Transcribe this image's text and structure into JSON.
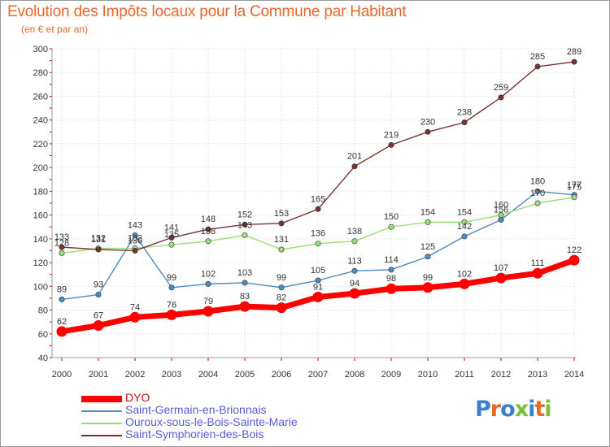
{
  "title": "Evolution des Impôts locaux pour la Commune par Habitant",
  "subtitle": "(en € et par an)",
  "logo": {
    "text": "Proxiti",
    "colors": [
      "#3a7fd0",
      "#e8682a",
      "#3a7fd0",
      "#7bbf3a",
      "#3a7fd0",
      "#e8682a",
      "#7bbf3a"
    ]
  },
  "chart_data": {
    "type": "line",
    "title": "Evolution des Impôts locaux pour la Commune par Habitant",
    "subtitle": "(en € et par an)",
    "xlabel": "",
    "ylabel": "",
    "ylim": [
      40,
      300
    ],
    "yticks": [
      40,
      60,
      80,
      100,
      120,
      140,
      160,
      180,
      200,
      220,
      240,
      260,
      280,
      300
    ],
    "x": [
      "2000",
      "2001",
      "2002",
      "2003",
      "2004",
      "2005",
      "2006",
      "2007",
      "2008",
      "2009",
      "2010",
      "2011",
      "2012",
      "2013",
      "2014"
    ],
    "grid": true,
    "legend_position": "bottom-left",
    "series": [
      {
        "name": "DYO",
        "color": "#ff0000",
        "emphasis": true,
        "values": [
          62,
          67,
          74,
          76,
          79,
          83,
          82,
          91,
          94,
          98,
          99,
          102,
          107,
          111,
          122
        ]
      },
      {
        "name": "Saint-Germain-en-Brionnais",
        "color": "#4d8ac0",
        "emphasis": false,
        "values": [
          89,
          93,
          143,
          99,
          102,
          103,
          99,
          105,
          113,
          114,
          125,
          142,
          156,
          180,
          177
        ]
      },
      {
        "name": "Ouroux-sous-le-Bois-Sainte-Marie",
        "color": "#99dd77",
        "emphasis": false,
        "values": [
          128,
          132,
          132,
          135,
          138,
          143,
          131,
          136,
          138,
          150,
          154,
          154,
          160,
          170,
          175
        ]
      },
      {
        "name": "Saint-Symphorien-des-Bois",
        "color": "#773333",
        "emphasis": false,
        "values": [
          133,
          131,
          130,
          141,
          148,
          152,
          153,
          165,
          201,
          219,
          230,
          238,
          259,
          285,
          289
        ]
      }
    ]
  }
}
